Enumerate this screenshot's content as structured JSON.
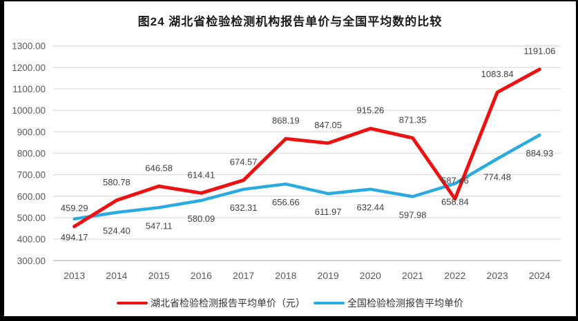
{
  "title": "图24 湖北省检验检测机构报告单价与全国平均数的比较",
  "chart_data": {
    "type": "line",
    "categories": [
      "2013",
      "2014",
      "2015",
      "2016",
      "2017",
      "2018",
      "2019",
      "2020",
      "2021",
      "2022",
      "2023",
      "2024"
    ],
    "series": [
      {
        "name": "湖北省检验检测报告平均单价（元）",
        "color": "#ee1111",
        "stroke_width": 5,
        "label_position": "above",
        "values": [
          459.29,
          580.78,
          646.58,
          614.41,
          674.57,
          868.19,
          847.05,
          915.26,
          871.35,
          587.46,
          1083.84,
          1191.06
        ]
      },
      {
        "name": "全国检验检测报告平均单价",
        "color": "#29abe2",
        "stroke_width": 4.5,
        "label_position": "below",
        "values": [
          494.17,
          524.4,
          547.11,
          580.09,
          632.31,
          656.66,
          611.97,
          632.44,
          597.98,
          658.84,
          774.48,
          884.93
        ]
      }
    ],
    "ylim": [
      300,
      1300
    ],
    "ytick_step": 100,
    "ytick_decimals": 2,
    "value_label_decimals": 2,
    "grid": true,
    "grid_color": "#dedede",
    "axis_line_color": "#c0c0c0",
    "tick_label_color": "#595959",
    "data_label_color": "#404040",
    "legend_position": "bottom"
  },
  "frame": {
    "border_color": "#000000",
    "background_color": "#ffffff"
  }
}
